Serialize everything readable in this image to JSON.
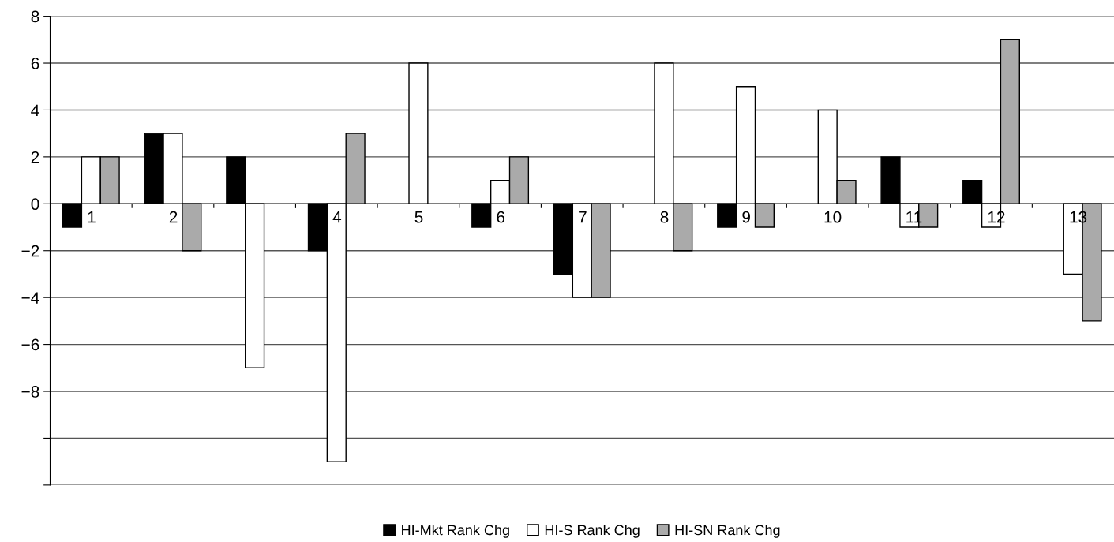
{
  "chart_data": {
    "type": "bar",
    "categories": [
      "1",
      "2",
      null,
      "4",
      "5",
      "6",
      "7",
      "8",
      "9",
      "10",
      "11",
      "12",
      "13"
    ],
    "series": [
      {
        "name": "HI-Mkt Rank Chg",
        "color": "#000000",
        "values": [
          -1,
          3,
          2,
          -2,
          0,
          -1,
          -3,
          0,
          -1,
          0,
          2,
          1,
          0
        ]
      },
      {
        "name": "HI-S Rank Chg",
        "color": "#ffffff",
        "values": [
          2,
          3,
          -7,
          -11,
          6,
          1,
          -4,
          6,
          5,
          4,
          -1,
          -1,
          -3
        ]
      },
      {
        "name": "HI-SN Rank Chg",
        "color": "#aaaaaa",
        "values": [
          2,
          -2,
          0,
          3,
          0,
          2,
          -4,
          -2,
          -1,
          1,
          -1,
          7,
          -5
        ]
      }
    ],
    "ylim": [
      -12,
      8
    ],
    "yticks": [
      {
        "value": -12,
        "label": null
      },
      {
        "value": -10,
        "label": null
      },
      {
        "value": -8,
        "label": "−8"
      },
      {
        "value": -6,
        "label": "−6"
      },
      {
        "value": -4,
        "label": "−4"
      },
      {
        "value": -2,
        "label": "−2"
      },
      0,
      2,
      4,
      6,
      8
    ],
    "grid": "y",
    "legend": "bottom"
  }
}
